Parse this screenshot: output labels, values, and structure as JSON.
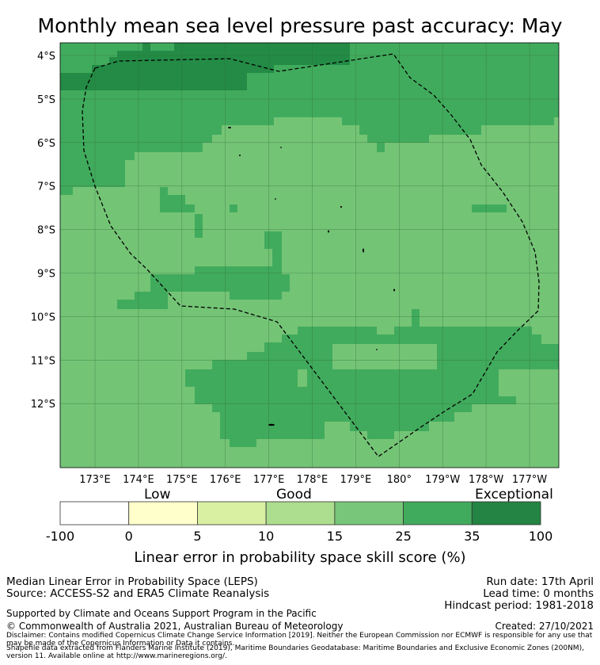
{
  "title": "Monthly mean sea level pressure past accuracy: May",
  "map": {
    "lat_labels": [
      "4°S",
      "5°S",
      "6°S",
      "7°S",
      "8°S",
      "9°S",
      "10°S",
      "11°S",
      "12°S"
    ],
    "lon_labels": [
      "173°E",
      "174°E",
      "175°E",
      "176°E",
      "177°E",
      "178°E",
      "179°E",
      "180°",
      "179°W",
      "178°W",
      "177°W"
    ],
    "extent": {
      "lon_min": 172.2,
      "lon_max": 183.7,
      "lat_top": -3.7,
      "lat_bottom": -13.5
    },
    "colors": {
      "exceptional": "#238b45",
      "dark": "#41ab5d",
      "mid": "#74c476",
      "land": "#000000",
      "boundary": "#000000",
      "grid": "#2f6b35"
    }
  },
  "colorbar": {
    "segments": [
      {
        "from": "-100",
        "to": "0",
        "color": "#ffffff"
      },
      {
        "from": "0",
        "to": "5",
        "color": "#ffffcc"
      },
      {
        "from": "5",
        "to": "10",
        "color": "#d9f0a3"
      },
      {
        "from": "10",
        "to": "15",
        "color": "#addd8e"
      },
      {
        "from": "15",
        "to": "25",
        "color": "#78c679"
      },
      {
        "from": "25",
        "to": "35",
        "color": "#41ab5d"
      },
      {
        "from": "35",
        "to": "100",
        "color": "#238443"
      }
    ],
    "ticks": [
      "-100",
      "0",
      "5",
      "10",
      "15",
      "25",
      "35",
      "100"
    ],
    "category_labels": {
      "low": "Low",
      "good": "Good",
      "exceptional": "Exceptional"
    },
    "axis_label": "Linear error in probability space skill score (%)"
  },
  "footer": {
    "left1": "Median Linear Error in Probability Space (LEPS)",
    "left2": "Source: ACCESS-S2 and ERA5 Climate Reanalysis",
    "support": "Supported by Climate and Oceans Support Program in the Pacific",
    "copyright": "© Commonwealth of Australia 2021, Australian Bureau of Meteorology",
    "run_date": "Run date: 17th April",
    "lead_time": "Lead time: 0 months",
    "hindcast": "Hindcast period: 1981-2018",
    "created": "Created: 27/10/2021",
    "disclaimer": "Disclaimer: Contains modified Copernicus Climate Change Service Information [2019]. Neither the European Commission nor ECMWF is responsible for any use that may be made of the Copernicus Information or Data it contains.",
    "shapefile": "Shapefile data extracted from Flanders Marine Institute (2019), Maritime Boundaries Geodatabase: Maritime Boundaries and Exclusive Economic Zones (200NM), version 11. Available online at http://www.marineregions.org/."
  }
}
